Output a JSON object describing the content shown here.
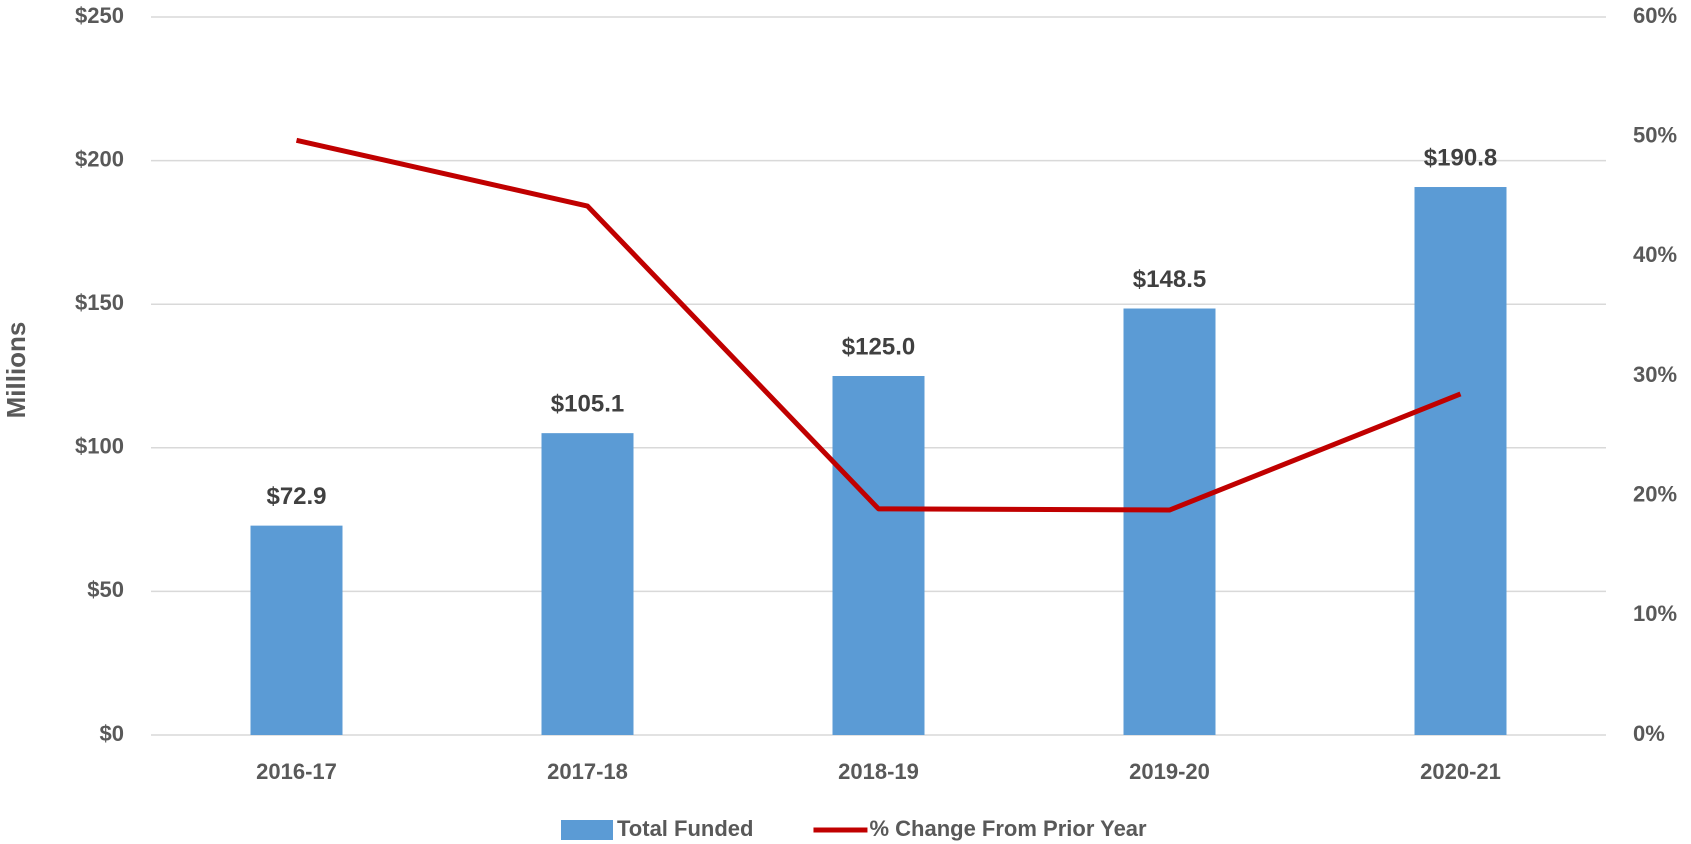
{
  "chart_data": {
    "type": "bar_line",
    "y_axis_label": "Millions",
    "categories": [
      "2016-17",
      "2017-18",
      "2018-19",
      "2019-20",
      "2020-21"
    ],
    "series": [
      {
        "name": "Total Funded",
        "type": "bar",
        "color": "#5b9bd5",
        "values": [
          72.9,
          105.1,
          125.0,
          148.5,
          190.8
        ],
        "value_labels": [
          "$72.9",
          "$105.1",
          "$125.0",
          "$148.5",
          "$190.8"
        ]
      },
      {
        "name": "% Change From Prior Year",
        "type": "line",
        "axis": "y2",
        "color": "#c00000",
        "values": [
          49.7,
          44.2,
          18.9,
          18.8,
          28.5
        ]
      }
    ],
    "ylim": [
      0,
      250
    ],
    "yticks": [
      {
        "value": 0,
        "label": "$0"
      },
      {
        "value": 50,
        "label": "$50"
      },
      {
        "value": 100,
        "label": "$100"
      },
      {
        "value": 150,
        "label": "$150"
      },
      {
        "value": 200,
        "label": "$200"
      },
      {
        "value": 250,
        "label": "$250"
      }
    ],
    "y2lim": [
      0,
      60
    ],
    "y2ticks": [
      {
        "value": 0,
        "label": "0%"
      },
      {
        "value": 10,
        "label": "10%"
      },
      {
        "value": 20,
        "label": "20%"
      },
      {
        "value": 30,
        "label": "30%"
      },
      {
        "value": 40,
        "label": "40%"
      },
      {
        "value": 50,
        "label": "50%"
      },
      {
        "value": 60,
        "label": "60%"
      }
    ],
    "grid": true,
    "legend": "bottom"
  }
}
